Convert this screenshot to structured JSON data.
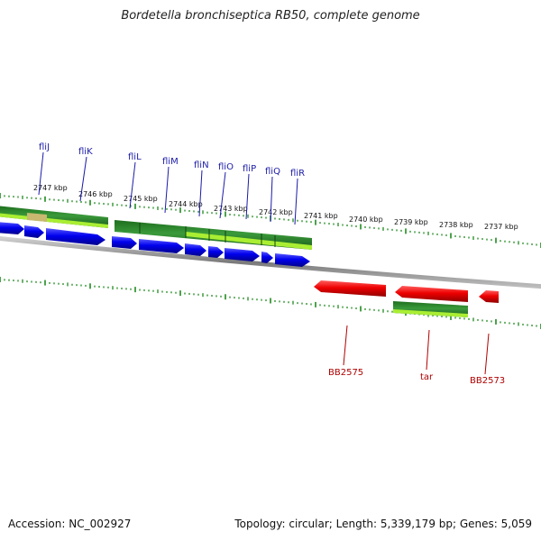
{
  "title": "Bordetella bronchiseptica RB50, complete genome",
  "footer": {
    "accession": "Accession: NC_002927",
    "summary": "Topology: circular; Length: 5,339,179 bp; Genes: 5,059"
  },
  "ruler_labels": [
    "2747 kbp",
    "2746 kbp",
    "2745 kbp",
    "2744 kbp",
    "2743 kbp",
    "2742 kbp",
    "2741 kbp",
    "2740 kbp",
    "2739 kbp",
    "2738 kbp",
    "2737 kbp"
  ],
  "top_gene_labels": [
    "fliJ",
    "fliK",
    "fliL",
    "fliM",
    "fliN",
    "fliO",
    "fliP",
    "fliQ",
    "fliR"
  ],
  "bottom_gene_labels": [
    "BB2575",
    "tar",
    "BB2573"
  ],
  "colors": {
    "forward_cds": "#0000ee",
    "reverse_cds": "#ee0000",
    "feature_green": "#2e8b2e",
    "feature_light": "#aaee33",
    "ruler_tick": "#1f8a1f",
    "backbone": "#888888",
    "top_label": "#1a1aa8",
    "bottom_label": "#b00000"
  }
}
